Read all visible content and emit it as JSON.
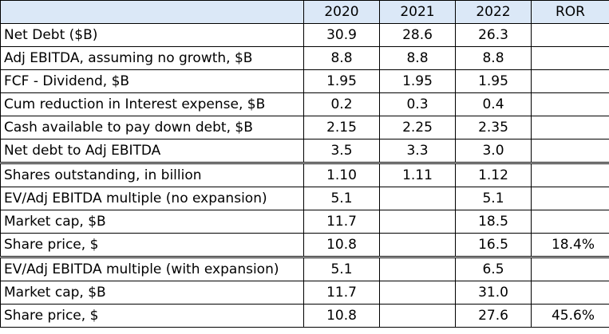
{
  "colors": {
    "header_bg": "#dbe8f7",
    "grid": "#000000"
  },
  "table": {
    "header": {
      "label": "",
      "years": [
        "2020",
        "2021",
        "2022"
      ],
      "ror": "ROR"
    },
    "rows": [
      {
        "label": "Net Debt ($B)",
        "v2020": "30.9",
        "v2021": "28.6",
        "v2022": "26.3",
        "ror": ""
      },
      {
        "label": "Adj EBITDA, assuming no growth, $B",
        "v2020": "8.8",
        "v2021": "8.8",
        "v2022": "8.8",
        "ror": ""
      },
      {
        "label": "FCF - Dividend, $B",
        "v2020": "1.95",
        "v2021": "1.95",
        "v2022": "1.95",
        "ror": ""
      },
      {
        "label": "Cum reduction in Interest expense, $B",
        "v2020": "0.2",
        "v2021": "0.3",
        "v2022": "0.4",
        "ror": ""
      },
      {
        "label": "Cash available to pay down debt, $B",
        "v2020": "2.15",
        "v2021": "2.25",
        "v2022": "2.35",
        "ror": ""
      },
      {
        "label": "Net debt to Adj EBITDA",
        "v2020": "3.5",
        "v2021": "3.3",
        "v2022": "3.0",
        "ror": ""
      },
      {
        "label": "Shares outstanding, in billion",
        "v2020": "1.10",
        "v2021": "1.11",
        "v2022": "1.12",
        "ror": ""
      },
      {
        "label": "EV/Adj EBITDA multiple (no expansion)",
        "v2020": "5.1",
        "v2021": "",
        "v2022": "5.1",
        "ror": ""
      },
      {
        "label": "Market cap, $B",
        "v2020": "11.7",
        "v2021": "",
        "v2022": "18.5",
        "ror": ""
      },
      {
        "label": "Share price, $",
        "v2020": "10.8",
        "v2021": "",
        "v2022": "16.5",
        "ror": "18.4%"
      },
      {
        "label": "EV/Adj EBITDA multiple (with expansion)",
        "v2020": "5.1",
        "v2021": "",
        "v2022": "6.5",
        "ror": ""
      },
      {
        "label": "Market cap, $B",
        "v2020": "11.7",
        "v2021": "",
        "v2022": "31.0",
        "ror": ""
      },
      {
        "label": "Share price, $",
        "v2020": "10.8",
        "v2021": "",
        "v2022": "27.6",
        "ror": "45.6%"
      }
    ]
  }
}
